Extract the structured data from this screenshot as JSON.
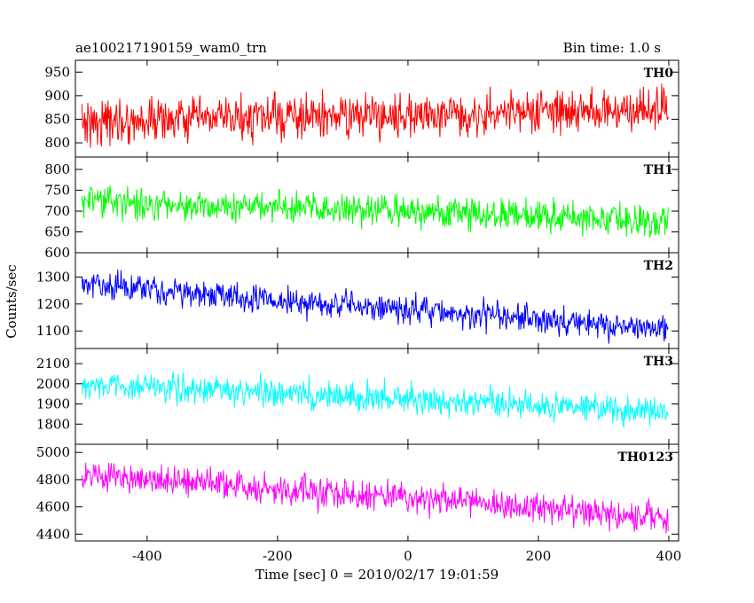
{
  "header": {
    "title": "ae100217190159_wam0_trn",
    "bin_time": "Bin time: 1.0 s"
  },
  "chart_data": {
    "type": "line",
    "xlabel": "Time [sec] 0 = 2010/02/17 19:01:59",
    "ylabel": "Counts/sec",
    "xlim": [
      -510,
      415
    ],
    "xticks": [
      -400,
      -200,
      0,
      200,
      400
    ],
    "x_start": -500,
    "x_end": 399,
    "x_step": 1,
    "series": [
      {
        "name": "TH0",
        "color": "#ff0000",
        "ylim": [
          770,
          975
        ],
        "yticks": [
          800,
          850,
          900,
          950
        ],
        "mean_start": 845,
        "mean_end": 870,
        "spread": 35
      },
      {
        "name": "TH1",
        "color": "#00ff00",
        "ylim": [
          600,
          830
        ],
        "yticks": [
          600,
          650,
          700,
          750,
          800
        ],
        "mean_start": 725,
        "mean_end": 675,
        "spread": 28
      },
      {
        "name": "TH2",
        "color": "#0000ff",
        "ylim": [
          1035,
          1390
        ],
        "yticks": [
          1100,
          1200,
          1300
        ],
        "mean_start": 1270,
        "mean_end": 1105,
        "spread": 40
      },
      {
        "name": "TH3",
        "color": "#00ffff",
        "ylim": [
          1700,
          2175
        ],
        "yticks": [
          1800,
          1900,
          2000,
          2100
        ],
        "mean_start": 2000,
        "mean_end": 1860,
        "spread": 55
      },
      {
        "name": "TH0123",
        "color": "#ff00ff",
        "ylim": [
          4350,
          5060
        ],
        "yticks": [
          4400,
          4600,
          4800,
          5000
        ],
        "mean_start": 4830,
        "mean_end": 4520,
        "spread": 85
      }
    ]
  }
}
